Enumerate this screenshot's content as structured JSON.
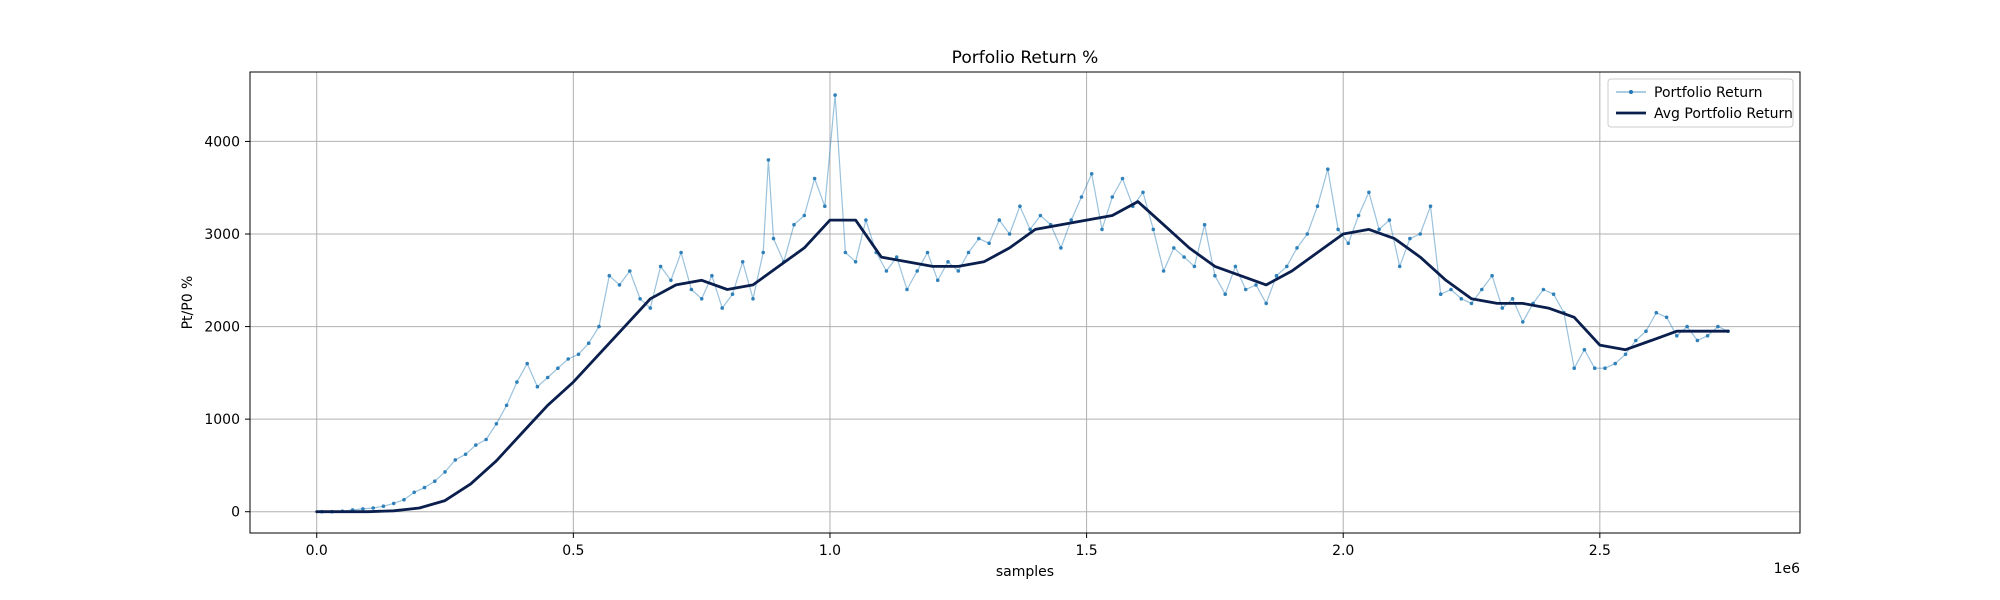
{
  "chart_data": {
    "type": "line",
    "title": "Porfolio Return %",
    "xlabel": "samples",
    "ylabel": "Pt/P0 %",
    "x_offset_label": "1e6",
    "x_scale": 1000000,
    "xlim": [
      -0.13,
      2.89
    ],
    "ylim": [
      -230,
      4750
    ],
    "xticks": [
      0.0,
      0.5,
      1.0,
      1.5,
      2.0,
      2.5
    ],
    "xtick_labels": [
      "0.0",
      "0.5",
      "1.0",
      "1.5",
      "2.0",
      "2.5"
    ],
    "yticks": [
      0,
      1000,
      2000,
      3000,
      4000
    ],
    "ytick_labels": [
      "0",
      "1000",
      "2000",
      "3000",
      "4000"
    ],
    "grid": true,
    "legend_position": "top-right",
    "colors": {
      "portfolio_return": "#1f77b4",
      "avg_portfolio_return": "#0a1f4d",
      "grid": "#b0b0b0"
    },
    "series": [
      {
        "name": "Portfolio Return",
        "style": "thin line with small markers",
        "x": [
          0.01,
          0.03,
          0.05,
          0.07,
          0.09,
          0.11,
          0.13,
          0.15,
          0.17,
          0.19,
          0.21,
          0.23,
          0.25,
          0.27,
          0.29,
          0.31,
          0.33,
          0.35,
          0.37,
          0.39,
          0.41,
          0.43,
          0.45,
          0.47,
          0.49,
          0.51,
          0.53,
          0.55,
          0.57,
          0.59,
          0.61,
          0.63,
          0.65,
          0.67,
          0.69,
          0.71,
          0.73,
          0.75,
          0.77,
          0.79,
          0.81,
          0.83,
          0.85,
          0.87,
          0.88,
          0.89,
          0.91,
          0.93,
          0.95,
          0.97,
          0.99,
          1.01,
          1.03,
          1.05,
          1.07,
          1.09,
          1.11,
          1.13,
          1.15,
          1.17,
          1.19,
          1.21,
          1.23,
          1.25,
          1.27,
          1.29,
          1.31,
          1.33,
          1.35,
          1.37,
          1.39,
          1.41,
          1.43,
          1.45,
          1.47,
          1.49,
          1.51,
          1.53,
          1.55,
          1.57,
          1.59,
          1.61,
          1.63,
          1.65,
          1.67,
          1.69,
          1.71,
          1.73,
          1.75,
          1.77,
          1.79,
          1.81,
          1.83,
          1.85,
          1.87,
          1.89,
          1.91,
          1.93,
          1.95,
          1.97,
          1.99,
          2.01,
          2.03,
          2.05,
          2.07,
          2.09,
          2.11,
          2.13,
          2.15,
          2.17,
          2.19,
          2.21,
          2.23,
          2.25,
          2.27,
          2.29,
          2.31,
          2.33,
          2.35,
          2.37,
          2.39,
          2.41,
          2.43,
          2.45,
          2.47,
          2.49,
          2.51,
          2.53,
          2.55,
          2.57,
          2.59,
          2.61,
          2.63,
          2.65,
          2.67,
          2.69,
          2.71,
          2.73,
          2.75
        ],
        "values": [
          0,
          0,
          5,
          20,
          30,
          40,
          60,
          90,
          130,
          210,
          260,
          330,
          430,
          560,
          620,
          720,
          780,
          950,
          1150,
          1400,
          1600,
          1350,
          1450,
          1550,
          1650,
          1700,
          1820,
          2000,
          2550,
          2450,
          2600,
          2300,
          2200,
          2650,
          2500,
          2800,
          2400,
          2300,
          2550,
          2200,
          2350,
          2700,
          2300,
          2800,
          3800,
          2950,
          2700,
          3100,
          3200,
          3600,
          3300,
          4500,
          2800,
          2700,
          3150,
          2800,
          2600,
          2750,
          2400,
          2600,
          2800,
          2500,
          2700,
          2600,
          2800,
          2950,
          2900,
          3150,
          3000,
          3300,
          3050,
          3200,
          3100,
          2850,
          3150,
          3400,
          3650,
          3050,
          3400,
          3600,
          3300,
          3450,
          3050,
          2600,
          2850,
          2750,
          2650,
          3100,
          2550,
          2350,
          2650,
          2400,
          2450,
          2250,
          2550,
          2650,
          2850,
          3000,
          3300,
          3700,
          3050,
          2900,
          3200,
          3450,
          3050,
          3150,
          2650,
          2950,
          3000,
          3300,
          2350,
          2400,
          2300,
          2250,
          2400,
          2550,
          2200,
          2300,
          2050,
          2250,
          2400,
          2350,
          2150,
          1550,
          1750,
          1550,
          1550,
          1600,
          1700,
          1850,
          1950,
          2150,
          2100,
          1900,
          2000,
          1850,
          1900,
          2000,
          1950
        ],
        "color": "#1f77b4"
      },
      {
        "name": "Avg Portfolio Return",
        "style": "thick solid line",
        "x": [
          0.0,
          0.05,
          0.1,
          0.15,
          0.2,
          0.25,
          0.3,
          0.35,
          0.4,
          0.45,
          0.5,
          0.55,
          0.6,
          0.65,
          0.7,
          0.75,
          0.8,
          0.85,
          0.9,
          0.95,
          1.0,
          1.05,
          1.1,
          1.15,
          1.2,
          1.25,
          1.3,
          1.35,
          1.4,
          1.45,
          1.5,
          1.55,
          1.6,
          1.65,
          1.7,
          1.75,
          1.8,
          1.85,
          1.9,
          1.95,
          2.0,
          2.05,
          2.1,
          2.15,
          2.2,
          2.25,
          2.3,
          2.35,
          2.4,
          2.45,
          2.5,
          2.55,
          2.6,
          2.65,
          2.7,
          2.75
        ],
        "values": [
          0,
          0,
          0,
          10,
          40,
          120,
          300,
          550,
          850,
          1150,
          1400,
          1700,
          2000,
          2300,
          2450,
          2500,
          2400,
          2450,
          2650,
          2850,
          3150,
          3150,
          2750,
          2700,
          2650,
          2650,
          2700,
          2850,
          3050,
          3100,
          3150,
          3200,
          3350,
          3100,
          2850,
          2650,
          2550,
          2450,
          2600,
          2800,
          3000,
          3050,
          2950,
          2750,
          2500,
          2300,
          2250,
          2250,
          2200,
          2100,
          1800,
          1750,
          1850,
          1950,
          1950,
          1950
        ],
        "color": "#0a1f4d"
      }
    ]
  }
}
